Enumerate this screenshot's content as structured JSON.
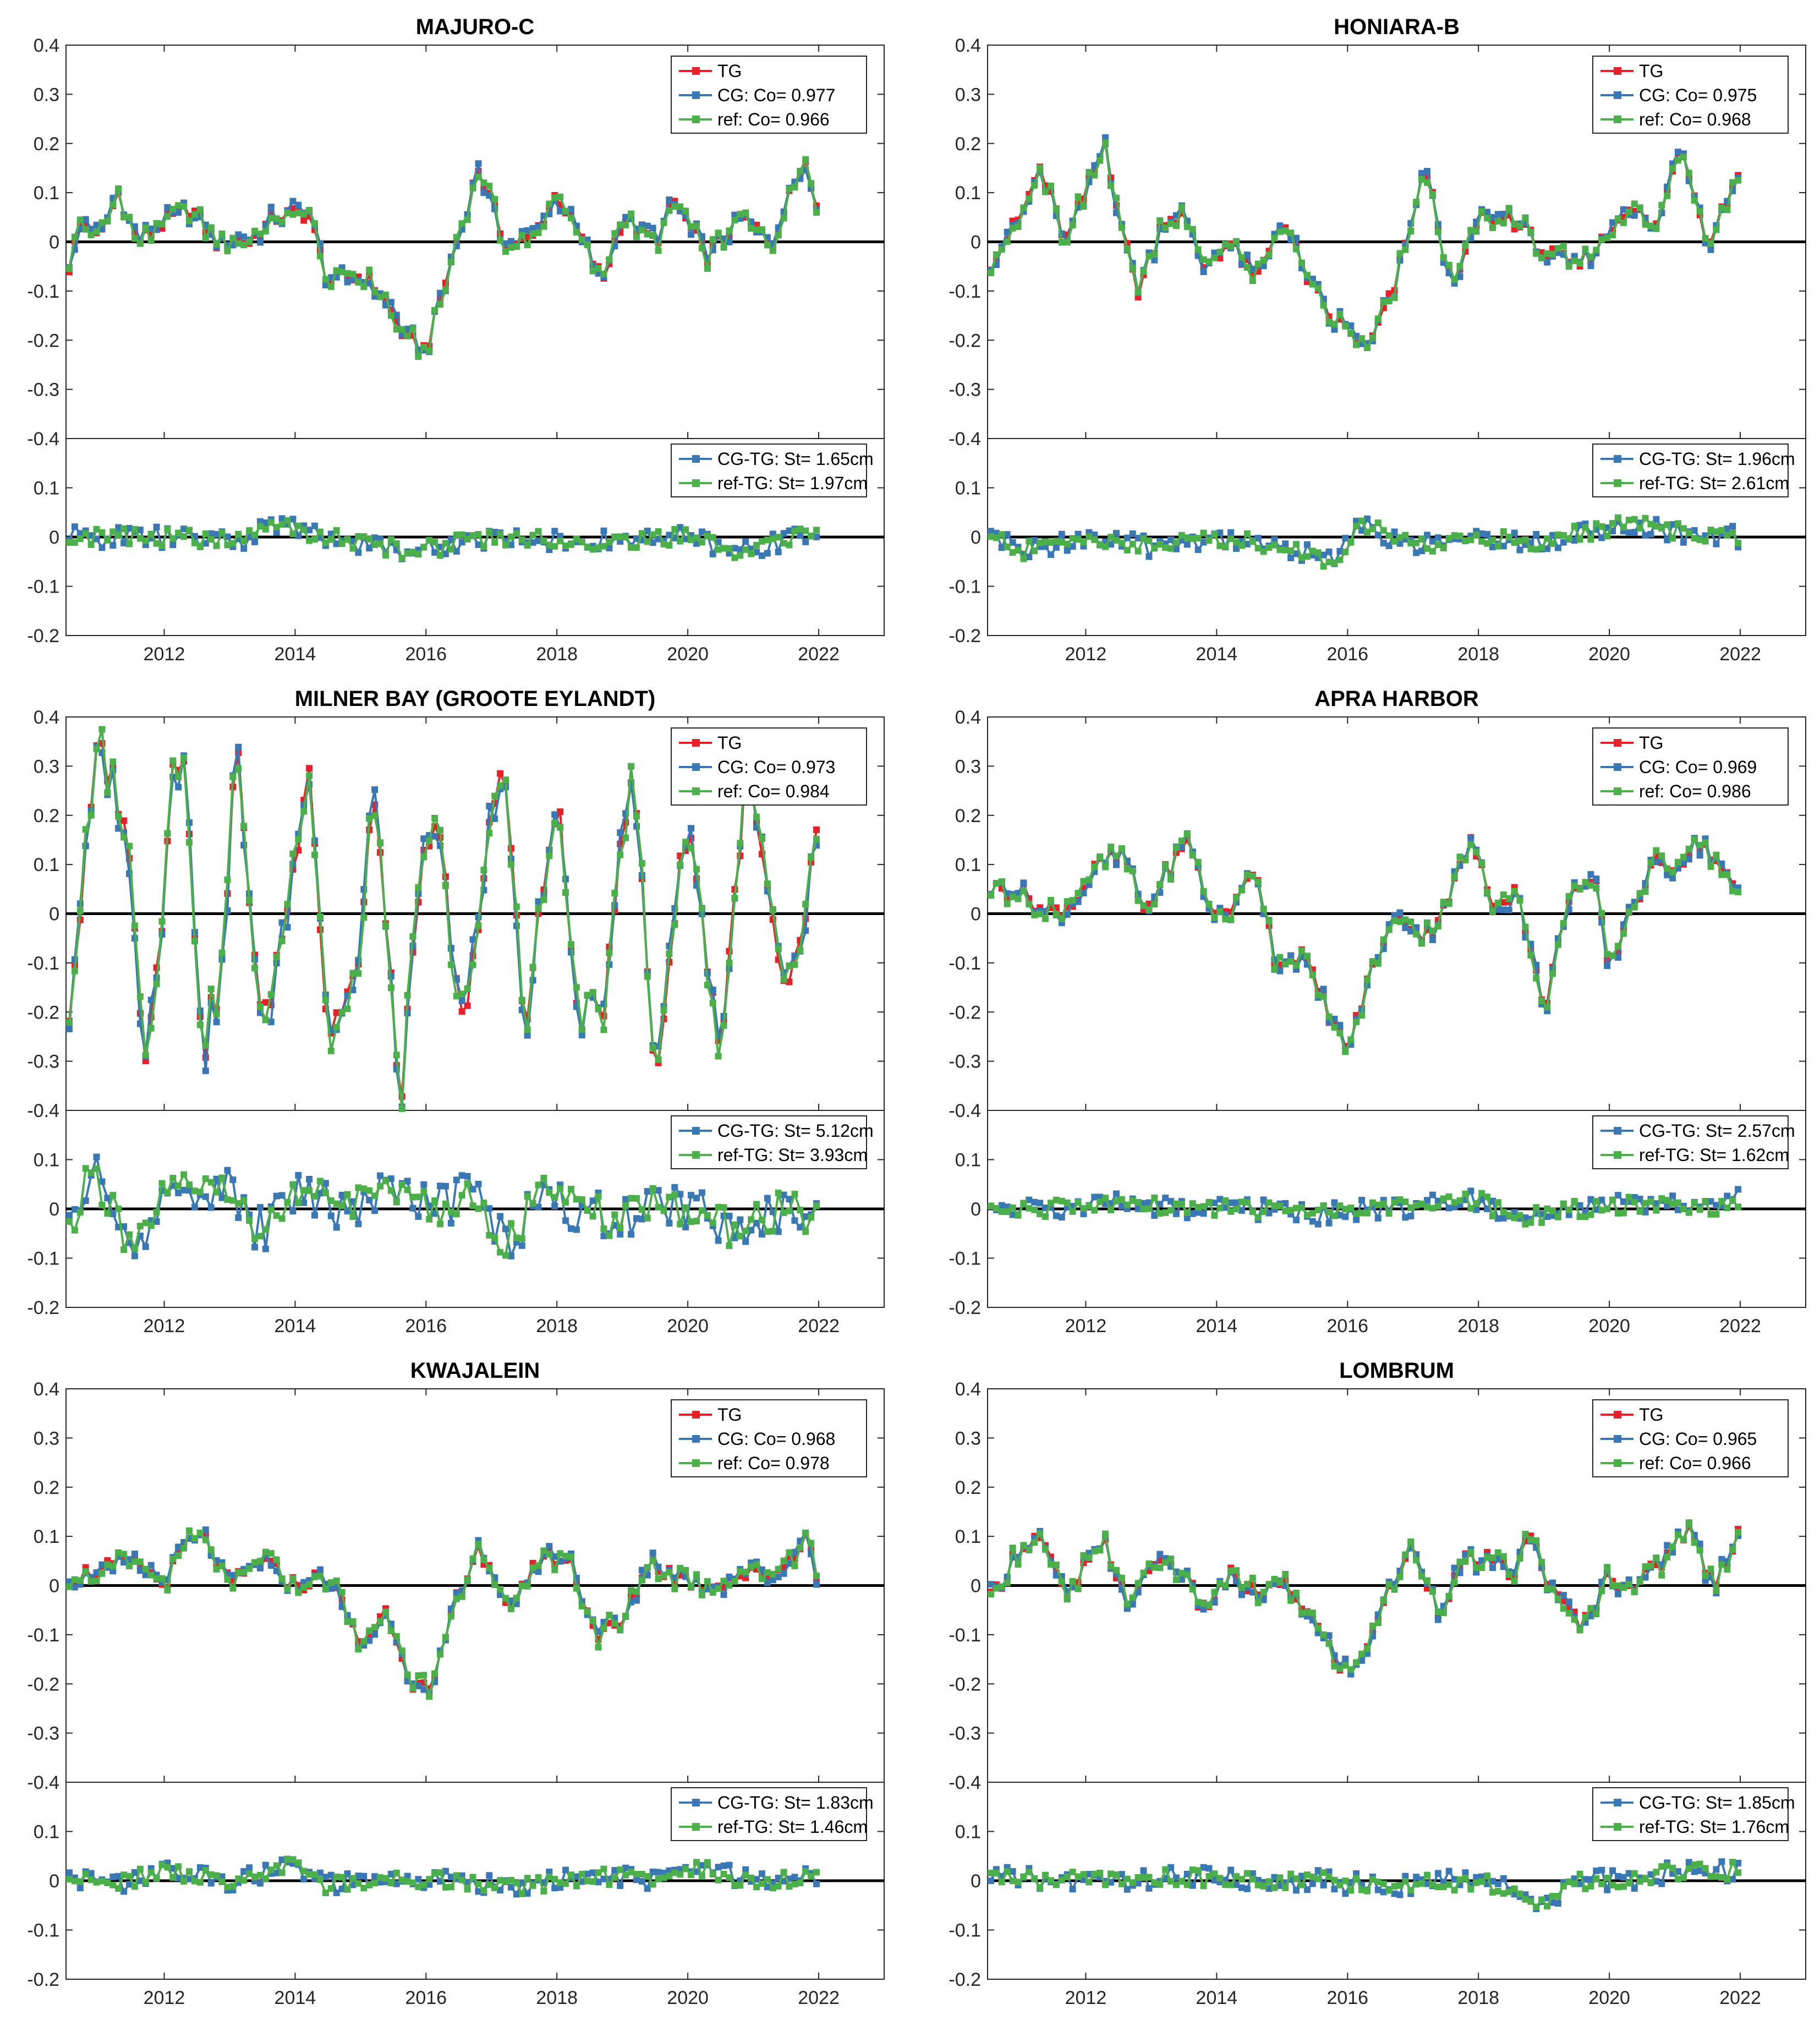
{
  "figure": {
    "x_ticks": [
      "2012",
      "2014",
      "2016",
      "2018",
      "2020",
      "2022"
    ],
    "x_tick_values": [
      2012,
      2014,
      2016,
      2018,
      2020,
      2022
    ],
    "xlim": [
      2010.5,
      2023
    ],
    "top_ylim": [
      -0.4,
      0.4
    ],
    "top_y_ticks": [
      "0.4",
      "0.3",
      "0.2",
      "0.1",
      "0",
      "-0.1",
      "-0.2",
      "-0.3",
      "-0.4"
    ],
    "bottom_ylim": [
      -0.2,
      0.2
    ],
    "bottom_y_ticks": [
      "0.2",
      "0.1",
      "0",
      "-0.1",
      "-0.2"
    ],
    "colors": {
      "TG": "#e8202a",
      "CG": "#3a78b5",
      "ref": "#4cb04a",
      "zero_line": "#000000"
    }
  },
  "chart_data": [
    {
      "type": "line",
      "title": "MAJURO-C",
      "legend": [
        "TG",
        "CG: Co= 0.977",
        "ref: Co= 0.966"
      ],
      "legend_diff": [
        "CG-TG: St= 1.65cm",
        "ref-TG: St= 1.97cm"
      ],
      "xlim": [
        2010.5,
        2023
      ],
      "ylim": [
        -0.4,
        0.4
      ],
      "diff_ylim": [
        -0.2,
        0.2
      ],
      "knots": [
        [
          2010.55,
          -0.05
        ],
        [
          2010.75,
          0.05
        ],
        [
          2011.0,
          0.0
        ],
        [
          2011.3,
          0.1
        ],
        [
          2011.6,
          0.0
        ],
        [
          2012.0,
          0.04
        ],
        [
          2012.4,
          0.07
        ],
        [
          2012.8,
          0.0
        ],
        [
          2013.3,
          0.0
        ],
        [
          2013.7,
          0.05
        ],
        [
          2014.2,
          0.06
        ],
        [
          2014.5,
          -0.08
        ],
        [
          2015.0,
          -0.07
        ],
        [
          2015.3,
          -0.1
        ],
        [
          2015.7,
          -0.2
        ],
        [
          2016.0,
          -0.22
        ],
        [
          2016.3,
          -0.08
        ],
        [
          2016.8,
          0.15
        ],
        [
          2017.2,
          0.0
        ],
        [
          2017.6,
          0.0
        ],
        [
          2018.0,
          0.1
        ],
        [
          2018.4,
          0.0
        ],
        [
          2018.7,
          -0.08
        ],
        [
          2019.0,
          0.05
        ],
        [
          2019.5,
          0.0
        ],
        [
          2019.8,
          0.08
        ],
        [
          2020.3,
          -0.03
        ],
        [
          2020.8,
          0.05
        ],
        [
          2021.3,
          0.0
        ],
        [
          2021.8,
          0.18
        ],
        [
          2022.0,
          0.05
        ]
      ],
      "diff_knots": [
        [
          2010.6,
          0.0
        ],
        [
          2012.0,
          0.0
        ],
        [
          2013.2,
          -0.01
        ],
        [
          2013.6,
          0.03
        ],
        [
          2014.5,
          0.0
        ],
        [
          2015.8,
          -0.03
        ],
        [
          2017.0,
          0.0
        ],
        [
          2018.5,
          -0.01
        ],
        [
          2020.0,
          0.0
        ],
        [
          2020.7,
          -0.03
        ],
        [
          2022.0,
          0.01
        ]
      ]
    },
    {
      "type": "line",
      "title": "HONIARA-B",
      "legend": [
        "TG",
        "CG: Co= 0.975",
        "ref: Co= 0.968"
      ],
      "legend_diff": [
        "CG-TG: St= 1.96cm",
        "ref-TG: St= 2.61cm"
      ],
      "xlim": [
        2010.5,
        2023
      ],
      "ylim": [
        -0.4,
        0.4
      ],
      "diff_ylim": [
        -0.2,
        0.2
      ],
      "knots": [
        [
          2010.55,
          -0.04
        ],
        [
          2011.0,
          0.05
        ],
        [
          2011.3,
          0.15
        ],
        [
          2011.7,
          0.0
        ],
        [
          2012.0,
          0.1
        ],
        [
          2012.3,
          0.2
        ],
        [
          2012.6,
          0.0
        ],
        [
          2012.8,
          -0.1
        ],
        [
          2013.2,
          0.05
        ],
        [
          2013.5,
          0.05
        ],
        [
          2013.8,
          -0.05
        ],
        [
          2014.2,
          0.0
        ],
        [
          2014.6,
          -0.08
        ],
        [
          2015.0,
          0.05
        ],
        [
          2015.3,
          -0.05
        ],
        [
          2015.7,
          -0.15
        ],
        [
          2016.0,
          -0.18
        ],
        [
          2016.3,
          -0.22
        ],
        [
          2016.7,
          -0.1
        ],
        [
          2017.2,
          0.15
        ],
        [
          2017.6,
          -0.1
        ],
        [
          2018.0,
          0.05
        ],
        [
          2018.5,
          0.05
        ],
        [
          2019.0,
          -0.02
        ],
        [
          2019.5,
          -0.05
        ],
        [
          2019.9,
          0.0
        ],
        [
          2020.3,
          0.08
        ],
        [
          2020.7,
          0.02
        ],
        [
          2021.1,
          0.2
        ],
        [
          2021.5,
          0.0
        ],
        [
          2022.0,
          0.15
        ]
      ],
      "diff_knots": [
        [
          2010.6,
          0.0
        ],
        [
          2011.0,
          -0.03
        ],
        [
          2012.0,
          0.0
        ],
        [
          2013.0,
          -0.02
        ],
        [
          2014.0,
          0.0
        ],
        [
          2015.0,
          -0.02
        ],
        [
          2015.8,
          -0.05
        ],
        [
          2016.2,
          0.03
        ],
        [
          2017.0,
          -0.02
        ],
        [
          2018.0,
          0.0
        ],
        [
          2019.0,
          -0.01
        ],
        [
          2020.3,
          0.03
        ],
        [
          2021.0,
          0.01
        ],
        [
          2022.0,
          0.0
        ]
      ]
    },
    {
      "type": "line",
      "title": "MILNER BAY (GROOTE EYLANDT)",
      "legend": [
        "TG",
        "CG: Co= 0.973",
        "ref: Co= 0.984"
      ],
      "legend_diff": [
        "CG-TG: St= 5.12cm",
        "ref-TG: St= 3.93cm"
      ],
      "xlim": [
        2010.5,
        2023
      ],
      "ylim": [
        -0.4,
        0.4
      ],
      "diff_ylim": [
        -0.2,
        0.2
      ],
      "knots": [
        [
          2010.55,
          -0.2
        ],
        [
          2011.0,
          0.35
        ],
        [
          2011.4,
          0.2
        ],
        [
          2011.7,
          -0.28
        ],
        [
          2012.0,
          0.0
        ],
        [
          2012.1,
          0.35
        ],
        [
          2012.3,
          0.3
        ],
        [
          2012.6,
          -0.28
        ],
        [
          2012.9,
          -0.1
        ],
        [
          2013.1,
          0.35
        ],
        [
          2013.5,
          -0.25
        ],
        [
          2014.0,
          0.1
        ],
        [
          2014.2,
          0.35
        ],
        [
          2014.5,
          -0.25
        ],
        [
          2015.0,
          -0.1
        ],
        [
          2015.2,
          0.28
        ],
        [
          2015.6,
          -0.38
        ],
        [
          2016.0,
          0.15
        ],
        [
          2016.2,
          0.15
        ],
        [
          2016.6,
          -0.25
        ],
        [
          2017.0,
          0.2
        ],
        [
          2017.2,
          0.33
        ],
        [
          2017.5,
          -0.25
        ],
        [
          2018.0,
          0.25
        ],
        [
          2018.3,
          -0.2
        ],
        [
          2018.7,
          -0.2
        ],
        [
          2019.0,
          0.2
        ],
        [
          2019.2,
          0.25
        ],
        [
          2019.5,
          -0.35
        ],
        [
          2019.8,
          0.0
        ],
        [
          2020.0,
          0.2
        ],
        [
          2020.5,
          -0.28
        ],
        [
          2020.9,
          0.3
        ],
        [
          2021.5,
          -0.2
        ],
        [
          2021.8,
          0.0
        ],
        [
          2022.0,
          0.2
        ]
      ],
      "diff_knots": [
        [
          2010.6,
          -0.02
        ],
        [
          2010.9,
          0.08
        ],
        [
          2011.2,
          0.0
        ],
        [
          2011.5,
          -0.1
        ],
        [
          2012.0,
          0.02
        ],
        [
          2012.5,
          0.05
        ],
        [
          2013.0,
          0.03
        ],
        [
          2013.5,
          -0.05
        ],
        [
          2014.0,
          0.04
        ],
        [
          2014.8,
          0.0
        ],
        [
          2015.5,
          0.05
        ],
        [
          2016.0,
          0.0
        ],
        [
          2016.8,
          0.03
        ],
        [
          2017.2,
          -0.08
        ],
        [
          2017.8,
          0.04
        ],
        [
          2018.3,
          0.0
        ],
        [
          2019.0,
          -0.03
        ],
        [
          2019.5,
          0.02
        ],
        [
          2020.0,
          0.0
        ],
        [
          2020.8,
          -0.05
        ],
        [
          2021.5,
          0.01
        ],
        [
          2022.0,
          -0.02
        ]
      ]
    },
    {
      "type": "line",
      "title": "APRA HARBOR",
      "legend": [
        "TG",
        "CG: Co= 0.969",
        "ref: Co= 0.986"
      ],
      "legend_diff": [
        "CG-TG: St= 2.57cm",
        "ref-TG: St= 1.62cm"
      ],
      "xlim": [
        2010.5,
        2023
      ],
      "ylim": [
        -0.4,
        0.4
      ],
      "diff_ylim": [
        -0.2,
        0.2
      ],
      "knots": [
        [
          2010.55,
          0.05
        ],
        [
          2011.0,
          0.05
        ],
        [
          2011.4,
          0.0
        ],
        [
          2011.8,
          0.02
        ],
        [
          2012.2,
          0.1
        ],
        [
          2012.6,
          0.12
        ],
        [
          2012.9,
          0.0
        ],
        [
          2013.2,
          0.08
        ],
        [
          2013.6,
          0.15
        ],
        [
          2013.9,
          0.0
        ],
        [
          2014.3,
          0.02
        ],
        [
          2014.6,
          0.1
        ],
        [
          2014.9,
          -0.1
        ],
        [
          2015.3,
          -0.08
        ],
        [
          2015.7,
          -0.2
        ],
        [
          2016.0,
          -0.28
        ],
        [
          2016.4,
          -0.1
        ],
        [
          2016.8,
          0.0
        ],
        [
          2017.2,
          -0.05
        ],
        [
          2017.6,
          0.05
        ],
        [
          2017.9,
          0.15
        ],
        [
          2018.2,
          0.02
        ],
        [
          2018.6,
          0.05
        ],
        [
          2019.0,
          -0.2
        ],
        [
          2019.4,
          0.05
        ],
        [
          2019.8,
          0.05
        ],
        [
          2020.0,
          -0.12
        ],
        [
          2020.3,
          0.0
        ],
        [
          2020.7,
          0.1
        ],
        [
          2021.0,
          0.1
        ],
        [
          2021.4,
          0.15
        ],
        [
          2022.0,
          0.03
        ]
      ],
      "diff_knots": [
        [
          2010.6,
          0.0
        ],
        [
          2011.5,
          0.0
        ],
        [
          2012.5,
          0.01
        ],
        [
          2013.5,
          0.0
        ],
        [
          2014.5,
          0.0
        ],
        [
          2015.5,
          -0.01
        ],
        [
          2016.5,
          0.0
        ],
        [
          2017.5,
          0.01
        ],
        [
          2018.0,
          0.02
        ],
        [
          2018.5,
          -0.02
        ],
        [
          2019.5,
          0.0
        ],
        [
          2020.5,
          0.01
        ],
        [
          2021.5,
          0.0
        ],
        [
          2022.0,
          0.02
        ]
      ]
    },
    {
      "type": "line",
      "title": "KWAJALEIN",
      "legend": [
        "TG",
        "CG: Co= 0.968",
        "ref: Co= 0.978"
      ],
      "legend_diff": [
        "CG-TG: St= 1.83cm",
        "ref-TG: St= 1.46cm"
      ],
      "xlim": [
        2010.5,
        2023
      ],
      "ylim": [
        -0.4,
        0.4
      ],
      "diff_ylim": [
        -0.2,
        0.2
      ],
      "knots": [
        [
          2010.55,
          0.02
        ],
        [
          2011.0,
          0.03
        ],
        [
          2011.5,
          0.05
        ],
        [
          2012.0,
          0.0
        ],
        [
          2012.3,
          0.08
        ],
        [
          2012.6,
          0.1
        ],
        [
          2013.0,
          0.0
        ],
        [
          2013.5,
          0.05
        ],
        [
          2014.0,
          0.0
        ],
        [
          2014.5,
          0.02
        ],
        [
          2015.0,
          -0.12
        ],
        [
          2015.4,
          -0.05
        ],
        [
          2015.8,
          -0.2
        ],
        [
          2016.1,
          -0.22
        ],
        [
          2016.4,
          -0.05
        ],
        [
          2016.8,
          0.08
        ],
        [
          2017.2,
          -0.05
        ],
        [
          2017.8,
          0.06
        ],
        [
          2018.2,
          0.05
        ],
        [
          2018.6,
          -0.1
        ],
        [
          2019.0,
          -0.08
        ],
        [
          2019.4,
          0.05
        ],
        [
          2019.8,
          0.02
        ],
        [
          2020.3,
          0.0
        ],
        [
          2020.8,
          0.02
        ],
        [
          2021.4,
          0.03
        ],
        [
          2021.8,
          0.1
        ],
        [
          2022.0,
          0.01
        ]
      ],
      "diff_knots": [
        [
          2010.6,
          0.01
        ],
        [
          2011.2,
          -0.01
        ],
        [
          2012.0,
          0.02
        ],
        [
          2013.0,
          0.0
        ],
        [
          2014.0,
          0.03
        ],
        [
          2014.5,
          -0.01
        ],
        [
          2015.5,
          0.0
        ],
        [
          2016.5,
          0.0
        ],
        [
          2017.5,
          -0.01
        ],
        [
          2018.5,
          0.01
        ],
        [
          2019.5,
          0.0
        ],
        [
          2020.0,
          0.03
        ],
        [
          2021.0,
          0.0
        ],
        [
          2022.0,
          0.01
        ]
      ]
    },
    {
      "type": "line",
      "title": "LOMBRUM",
      "legend": [
        "TG",
        "CG: Co= 0.965",
        "ref: Co= 0.966"
      ],
      "legend_diff": [
        "CG-TG: St= 1.85cm",
        "ref-TG: St= 1.76cm"
      ],
      "xlim": [
        2010.5,
        2023
      ],
      "ylim": [
        -0.4,
        0.4
      ],
      "diff_ylim": [
        -0.2,
        0.2
      ],
      "knots": [
        [
          2010.55,
          -0.03
        ],
        [
          2011.0,
          0.08
        ],
        [
          2011.3,
          0.1
        ],
        [
          2011.7,
          -0.03
        ],
        [
          2012.0,
          0.04
        ],
        [
          2012.3,
          0.08
        ],
        [
          2012.7,
          -0.05
        ],
        [
          2013.0,
          0.05
        ],
        [
          2013.4,
          0.04
        ],
        [
          2013.8,
          -0.05
        ],
        [
          2014.2,
          0.02
        ],
        [
          2014.6,
          -0.02
        ],
        [
          2015.0,
          0.0
        ],
        [
          2015.4,
          -0.05
        ],
        [
          2015.8,
          -0.15
        ],
        [
          2016.1,
          -0.18
        ],
        [
          2016.5,
          -0.05
        ],
        [
          2017.0,
          0.08
        ],
        [
          2017.4,
          -0.05
        ],
        [
          2017.8,
          0.05
        ],
        [
          2018.2,
          0.05
        ],
        [
          2018.5,
          0.02
        ],
        [
          2018.8,
          0.1
        ],
        [
          2019.2,
          -0.03
        ],
        [
          2019.6,
          -0.08
        ],
        [
          2020.0,
          0.02
        ],
        [
          2020.4,
          0.0
        ],
        [
          2020.8,
          0.05
        ],
        [
          2021.2,
          0.12
        ],
        [
          2021.6,
          0.0
        ],
        [
          2022.0,
          0.12
        ]
      ],
      "diff_knots": [
        [
          2010.6,
          0.01
        ],
        [
          2011.5,
          0.0
        ],
        [
          2012.5,
          0.0
        ],
        [
          2013.5,
          0.01
        ],
        [
          2014.5,
          0.0
        ],
        [
          2015.5,
          0.0
        ],
        [
          2016.5,
          -0.01
        ],
        [
          2017.5,
          0.0
        ],
        [
          2018.5,
          -0.01
        ],
        [
          2019.0,
          -0.05
        ],
        [
          2019.5,
          0.0
        ],
        [
          2020.5,
          0.0
        ],
        [
          2021.0,
          0.02
        ],
        [
          2022.0,
          0.02
        ]
      ]
    }
  ]
}
